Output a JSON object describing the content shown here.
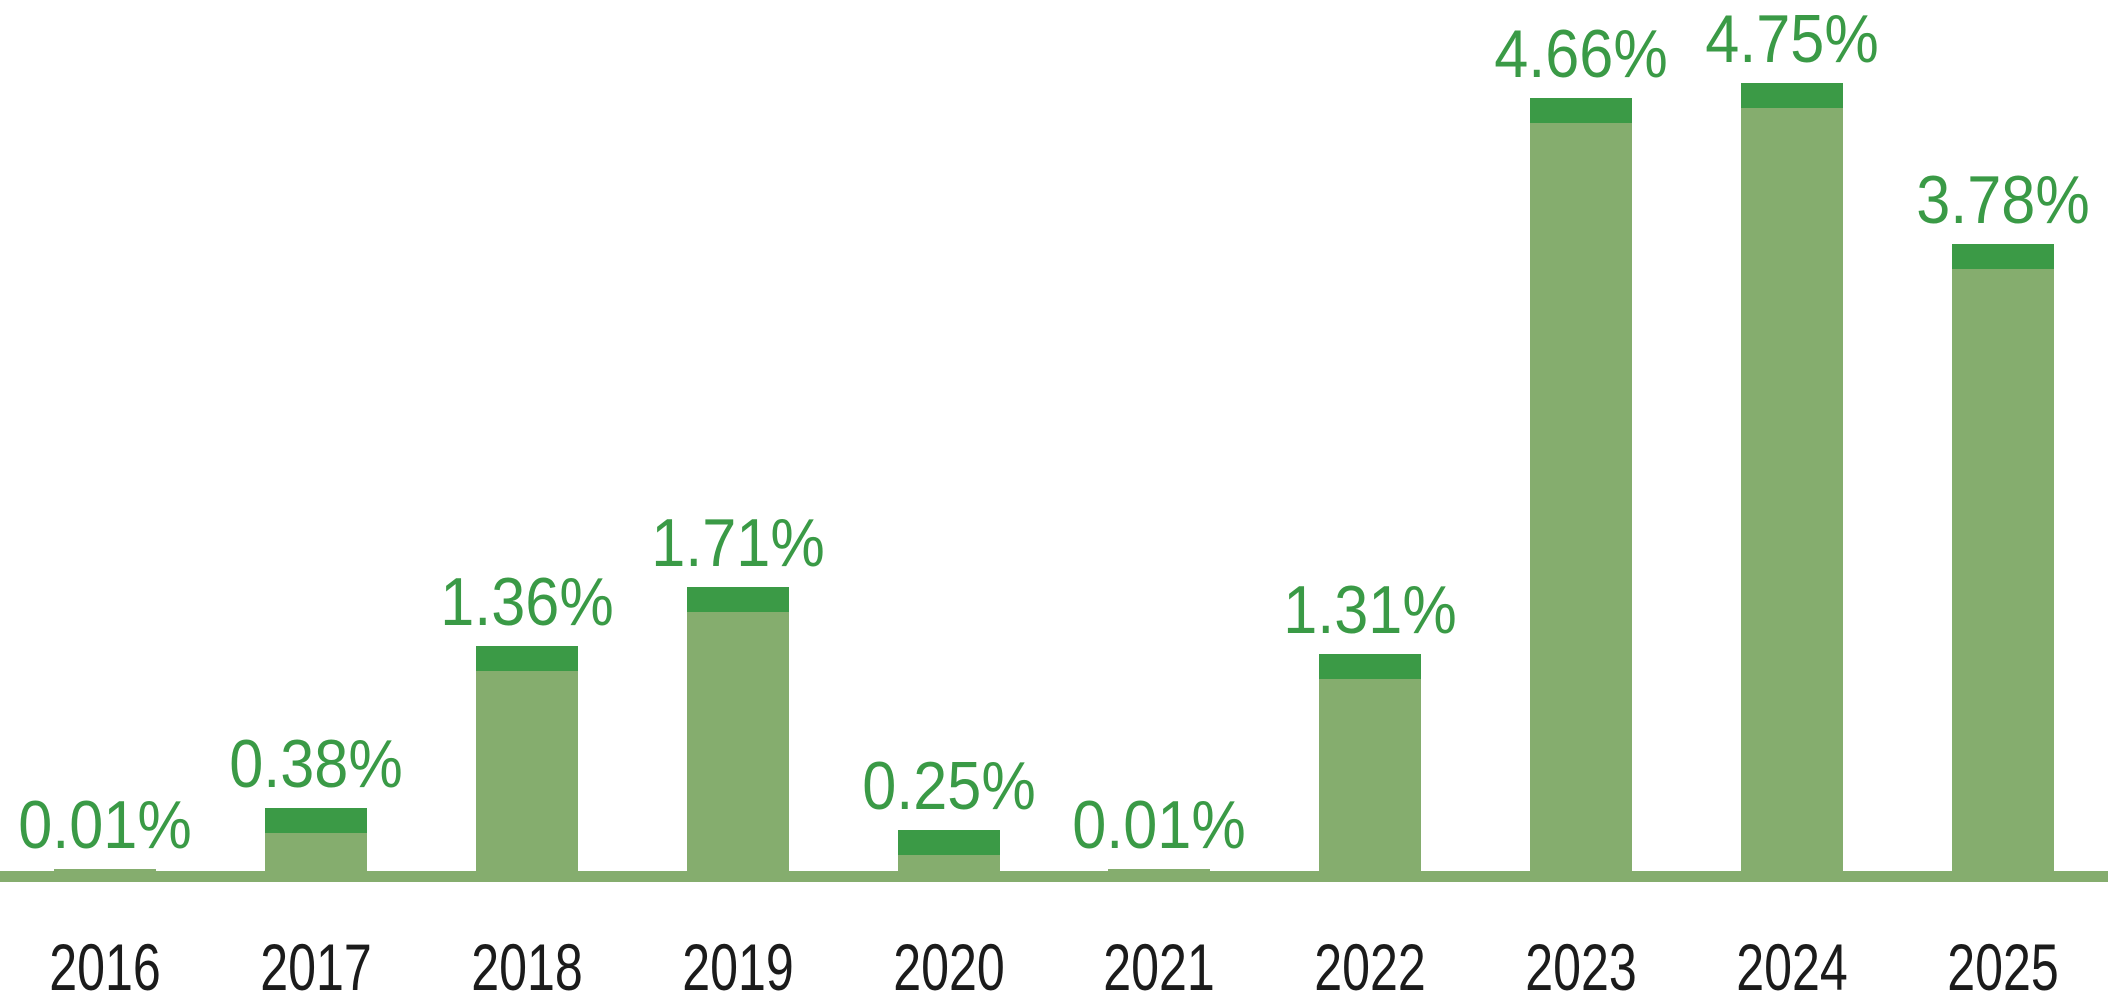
{
  "chart_data": {
    "type": "bar",
    "title": "",
    "xlabel": "",
    "ylabel": "",
    "categories": [
      "2016",
      "2017",
      "2018",
      "2019",
      "2020",
      "2021",
      "2022",
      "2023",
      "2024",
      "2025"
    ],
    "values": [
      0.01,
      0.38,
      1.36,
      1.71,
      0.25,
      0.01,
      1.31,
      4.66,
      4.75,
      3.78
    ],
    "value_labels": [
      "0.01%",
      "0.38%",
      "1.36%",
      "1.71%",
      "0.25%",
      "0.01%",
      "1.31%",
      "4.66%",
      "4.75%",
      "3.78%"
    ],
    "unit": "%",
    "ylim": [
      0,
      5.25
    ],
    "grid": false,
    "legend": false,
    "layout": {
      "bar_style": "light body with dark top cap",
      "baseline": "full-width horizontal line, value labels above bars, year labels below axis"
    },
    "colors": {
      "bar_body": "#85AD6E",
      "bar_cap": "#3B9A46",
      "axis_line": "#85AD6E",
      "value_label_text": "#3A9A46",
      "category_label_text": "#1B1B1B",
      "background": "#FFFFFF"
    }
  }
}
